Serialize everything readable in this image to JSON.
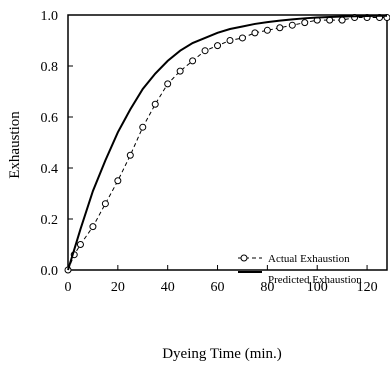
{
  "chart_data": {
    "type": "line",
    "xlabel": "Dyeing Time (min.)",
    "ylabel": "Exhaustion",
    "xlim": [
      0,
      128
    ],
    "ylim": [
      0,
      1.0
    ],
    "x_ticks": [
      "0",
      "20",
      "40",
      "60",
      "80",
      "100",
      "120"
    ],
    "y_ticks": [
      "0.0",
      "0.2",
      "0.4",
      "0.6",
      "0.8",
      "1.0"
    ],
    "grid": false,
    "legend_position": "lower-right",
    "series": [
      {
        "name": "Actual Exhaustion",
        "style": "dashed-circle-markers",
        "x": [
          0,
          2.5,
          5,
          10,
          15,
          20,
          25,
          30,
          35,
          40,
          45,
          50,
          55,
          60,
          65,
          70,
          75,
          80,
          85,
          90,
          95,
          100,
          105,
          110,
          115,
          120,
          125,
          128
        ],
        "y": [
          0.0,
          0.06,
          0.1,
          0.17,
          0.26,
          0.35,
          0.45,
          0.56,
          0.65,
          0.73,
          0.78,
          0.82,
          0.86,
          0.88,
          0.9,
          0.91,
          0.93,
          0.94,
          0.95,
          0.96,
          0.97,
          0.98,
          0.98,
          0.98,
          0.99,
          0.99,
          0.99,
          0.99
        ]
      },
      {
        "name": "Predicted Exhaustion",
        "style": "solid",
        "x": [
          0,
          5,
          10,
          15,
          20,
          25,
          30,
          35,
          40,
          45,
          50,
          55,
          60,
          65,
          70,
          75,
          80,
          85,
          90,
          95,
          100,
          105,
          110,
          115,
          120,
          125,
          128
        ],
        "y": [
          0.0,
          0.16,
          0.31,
          0.43,
          0.54,
          0.63,
          0.71,
          0.77,
          0.82,
          0.86,
          0.89,
          0.91,
          0.93,
          0.945,
          0.955,
          0.965,
          0.972,
          0.978,
          0.983,
          0.987,
          0.99,
          0.992,
          0.994,
          0.995,
          0.996,
          0.997,
          0.997
        ]
      }
    ]
  }
}
